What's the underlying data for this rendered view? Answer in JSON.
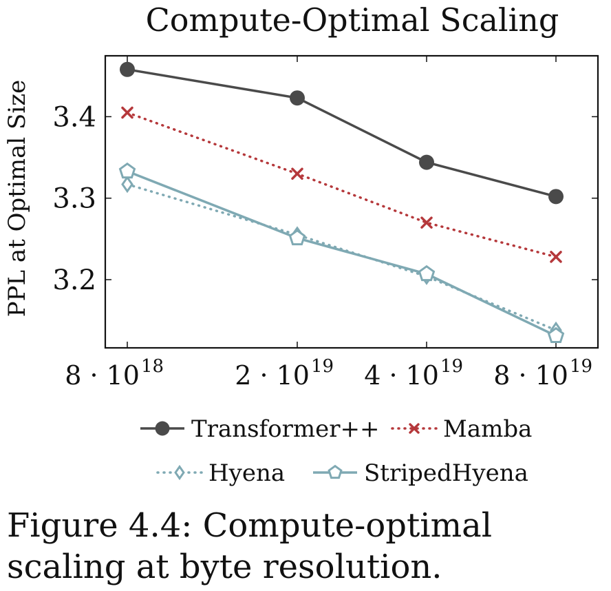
{
  "chart_data": {
    "type": "line",
    "title": "Compute-Optimal Scaling",
    "xlabel": "",
    "ylabel": "PPL at Optimal Size",
    "x_scale": "log",
    "x": [
      8e+18,
      2e+19,
      4e+19,
      8e+19
    ],
    "x_tick_labels": [
      {
        "base": "8 · 10",
        "exp": "18"
      },
      {
        "base": "2 · 10",
        "exp": "19"
      },
      {
        "base": "4 · 10",
        "exp": "19"
      },
      {
        "base": "8 · 10",
        "exp": "19"
      }
    ],
    "yticks": [
      "3.2",
      "3.3",
      "3.4"
    ],
    "ylim": [
      3.117,
      3.476
    ],
    "grid": false,
    "legend_position": "bottom",
    "series": [
      {
        "name": "Transformer++",
        "values": [
          3.458,
          3.423,
          3.344,
          3.302
        ],
        "color": "#4a4a4a",
        "line": "solid",
        "marker": "circle"
      },
      {
        "name": "Mamba",
        "values": [
          3.405,
          3.33,
          3.27,
          3.228
        ],
        "color": "#b5383b",
        "line": "dotted",
        "marker": "x"
      },
      {
        "name": "Hyena",
        "values": [
          3.317,
          3.255,
          3.204,
          3.138
        ],
        "color": "#7fa9b3",
        "line": "dotted",
        "marker": "diamond"
      },
      {
        "name": "StripedHyena",
        "values": [
          3.333,
          3.251,
          3.207,
          3.131
        ],
        "color": "#7fa9b3",
        "line": "solid",
        "marker": "pentagon"
      }
    ]
  },
  "caption": "Figure 4.4: Compute-optimal scaling at byte resolution."
}
